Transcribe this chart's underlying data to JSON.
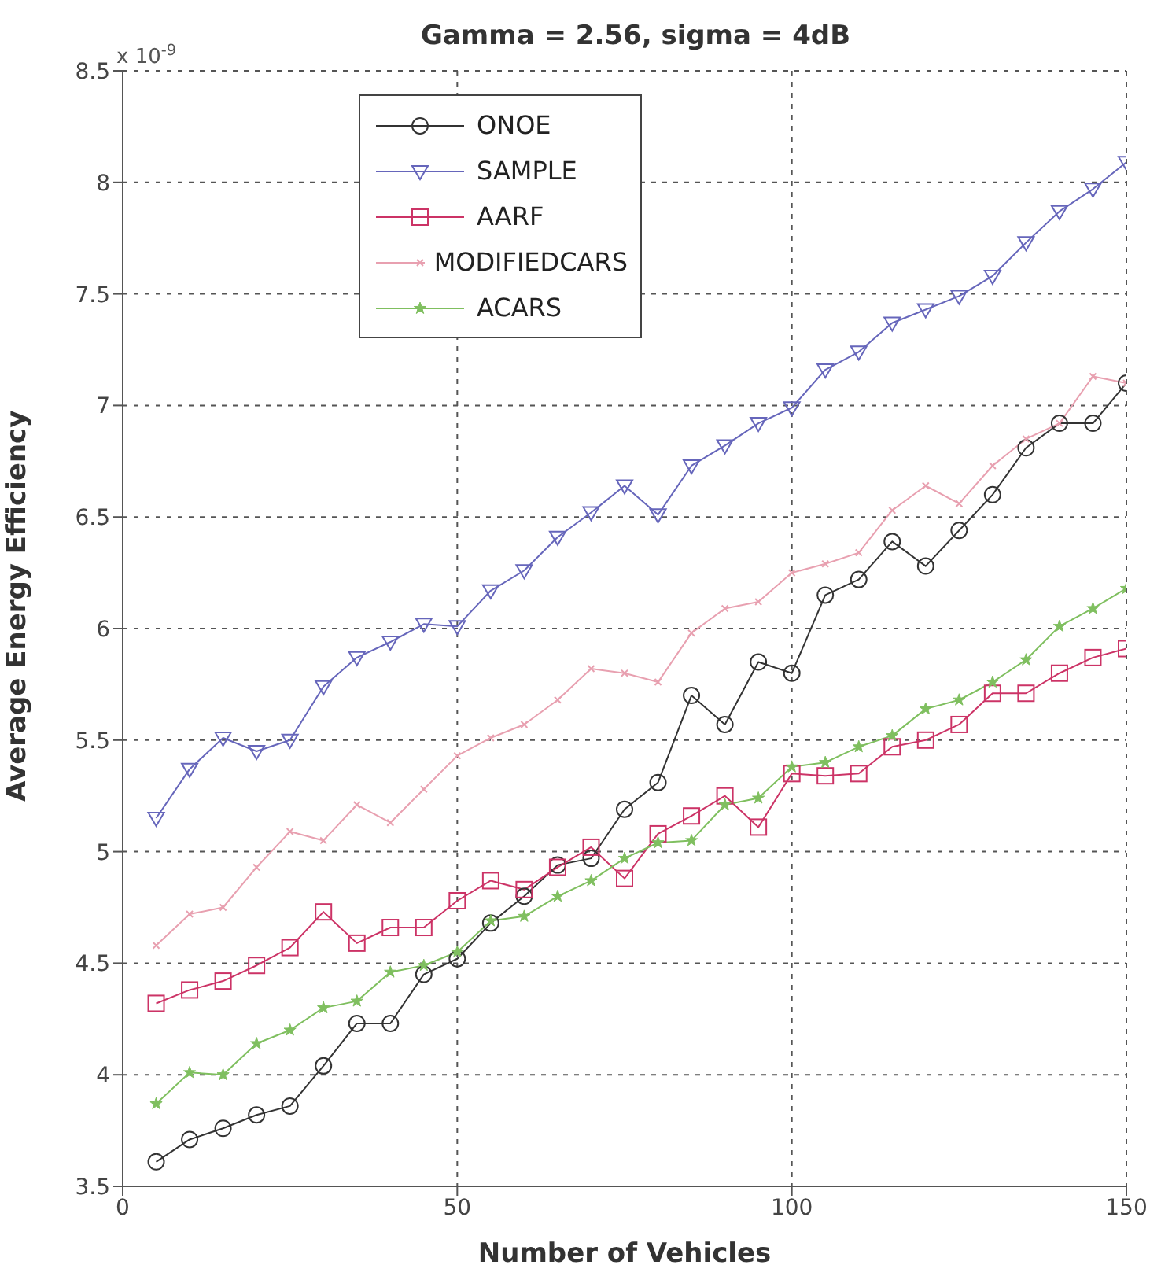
{
  "chart_data": {
    "type": "line",
    "title": "Gamma = 2.56, sigma = 4dB",
    "xlabel": "Number of Vehicles",
    "ylabel": "Average Energy Efficiency",
    "annotations": [
      "x 10$^{-9}$"
    ],
    "x": [
      5,
      10,
      15,
      20,
      25,
      30,
      35,
      40,
      45,
      50,
      55,
      60,
      65,
      70,
      75,
      80,
      85,
      90,
      95,
      100,
      105,
      110,
      115,
      120,
      125,
      130,
      135,
      140,
      145,
      150
    ],
    "xlim": [
      0,
      150
    ],
    "xticks": [
      0,
      50,
      100,
      150
    ],
    "ylim": [
      3.5,
      8.5
    ],
    "yticks": [
      3.5,
      4,
      4.5,
      5,
      5.5,
      6,
      6.5,
      7,
      7.5,
      8,
      8.5
    ],
    "grid": true,
    "legend": "top",
    "line_style": "solid",
    "series": [
      {
        "name": "ONOE",
        "color": "#333333",
        "marker": "circle",
        "values": [
          3.61,
          3.71,
          3.76,
          3.82,
          3.86,
          4.04,
          4.23,
          4.23,
          4.45,
          4.52,
          4.68,
          4.8,
          4.94,
          4.97,
          5.19,
          5.31,
          5.7,
          5.57,
          5.85,
          5.8,
          6.15,
          6.22,
          6.39,
          6.28,
          6.44,
          6.6,
          6.81,
          6.92,
          6.92,
          7.1
        ]
      },
      {
        "name": "SAMPLE",
        "color": "#6666bb",
        "marker": "triangle",
        "values": [
          5.15,
          5.37,
          5.51,
          5.45,
          5.5,
          5.74,
          5.87,
          5.94,
          6.02,
          6.01,
          6.17,
          6.26,
          6.41,
          6.52,
          6.64,
          6.51,
          6.73,
          6.82,
          6.92,
          6.99,
          7.16,
          7.24,
          7.37,
          7.43,
          7.49,
          7.58,
          7.73,
          7.87,
          7.97,
          8.09
        ]
      },
      {
        "name": "AARF",
        "color": "#cc3366",
        "marker": "square",
        "values": [
          4.32,
          4.38,
          4.42,
          4.49,
          4.57,
          4.73,
          4.59,
          4.66,
          4.66,
          4.78,
          4.87,
          4.83,
          4.93,
          5.02,
          4.88,
          5.08,
          5.16,
          5.25,
          5.11,
          5.35,
          5.34,
          5.35,
          5.47,
          5.5,
          5.57,
          5.71,
          5.71,
          5.8,
          5.87,
          5.91
        ]
      },
      {
        "name": "MODIFIEDCARS",
        "color": "#e8a0b0",
        "marker": "cross",
        "values": [
          4.58,
          4.72,
          4.75,
          4.93,
          5.09,
          5.05,
          5.21,
          5.13,
          5.28,
          5.43,
          5.51,
          5.57,
          5.68,
          5.82,
          5.8,
          5.76,
          5.98,
          6.09,
          6.12,
          6.25,
          6.29,
          6.34,
          6.53,
          6.64,
          6.56,
          6.73,
          6.85,
          6.92,
          7.13,
          7.1
        ]
      },
      {
        "name": "ACARS",
        "color": "#7fbf5f",
        "marker": "star",
        "values": [
          3.87,
          4.01,
          4.0,
          4.14,
          4.2,
          4.3,
          4.33,
          4.46,
          4.49,
          4.55,
          4.69,
          4.71,
          4.8,
          4.87,
          4.97,
          5.04,
          5.05,
          5.21,
          5.24,
          5.38,
          5.4,
          5.47,
          5.52,
          5.64,
          5.68,
          5.76,
          5.86,
          6.01,
          6.09,
          6.18
        ]
      }
    ]
  }
}
